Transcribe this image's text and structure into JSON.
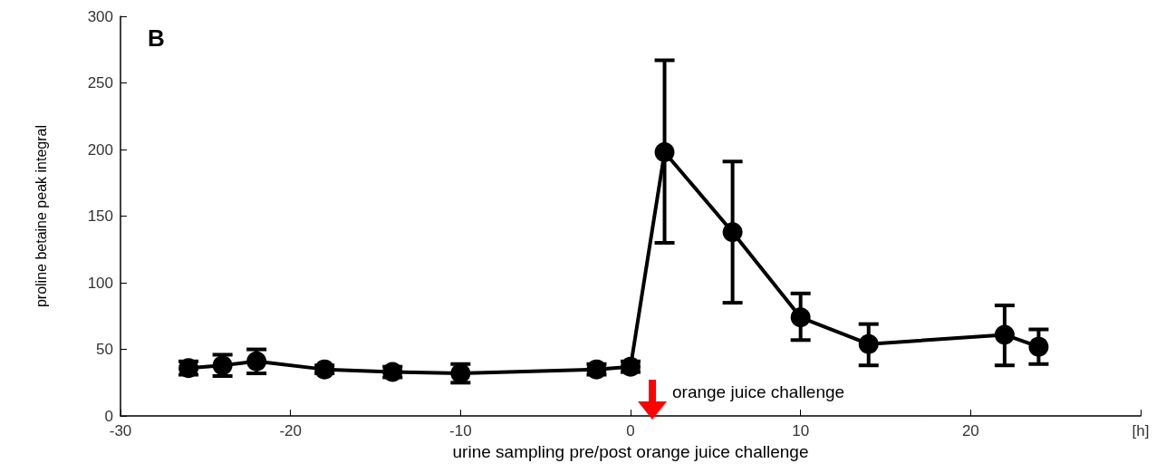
{
  "chart_data": {
    "type": "line",
    "xlabel": "urine sampling pre/post orange juice challenge",
    "ylabel": "proline betaine peak integral",
    "annotations": [
      "B",
      "orange juice challenge"
    ],
    "x": [
      -26,
      -24,
      -22,
      -18,
      -14,
      -10,
      -2,
      0,
      2,
      6,
      10,
      14,
      22,
      24
    ],
    "series": [
      {
        "color": "#000000",
        "values": [
          36,
          38,
          41,
          35,
          33,
          32,
          35,
          37,
          198,
          138,
          74,
          54,
          61,
          52
        ],
        "errors": [
          5,
          8,
          9,
          3,
          4,
          7,
          4,
          4,
          [
            130,
            267
          ],
          [
            85,
            191
          ],
          [
            57,
            92
          ],
          [
            38,
            69
          ],
          [
            38,
            83
          ],
          [
            39,
            65
          ]
        ]
      }
    ],
    "xlim": [
      -30,
      30
    ],
    "xticks": [
      -30,
      -20,
      -10,
      0,
      10,
      20,
      {
        "value": 30,
        "label": "[h]"
      }
    ],
    "ylim": [
      0,
      300
    ],
    "yticks": [
      0,
      50,
      100,
      150,
      200,
      250,
      300
    ],
    "grid": false,
    "marker": "circle",
    "line_style": "solid"
  }
}
